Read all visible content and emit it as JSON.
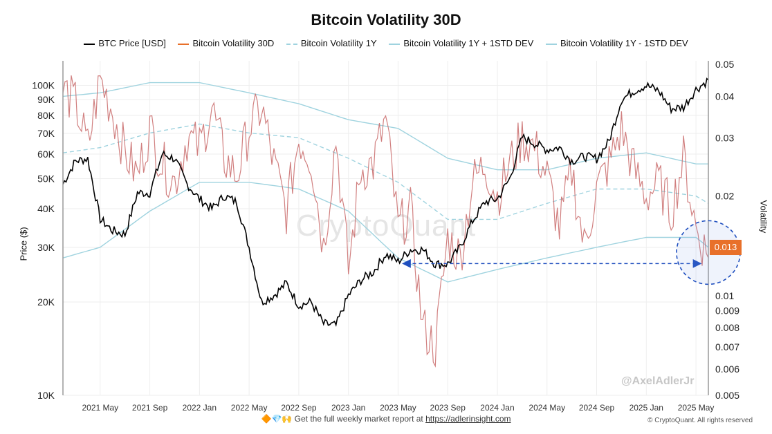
{
  "chart_data": {
    "type": "line",
    "title": "Bitcoin Volatility 30D",
    "y_left_label": "Price ($)",
    "y_right_label": "Volatility",
    "y_left_scale": "log",
    "y_right_scale": "log",
    "y_left_ticks": [
      "10K",
      "20K",
      "30K",
      "40K",
      "50K",
      "60K",
      "70K",
      "80K",
      "90K",
      "100K"
    ],
    "y_left_tick_values": [
      10000,
      20000,
      30000,
      40000,
      50000,
      60000,
      70000,
      80000,
      90000,
      100000
    ],
    "y_right_ticks": [
      "0.005",
      "0.006",
      "0.007",
      "0.008",
      "0.009",
      "0.01",
      "0.02",
      "0.03",
      "0.04",
      "0.05"
    ],
    "y_right_tick_values": [
      0.005,
      0.006,
      0.007,
      0.008,
      0.009,
      0.01,
      0.02,
      0.03,
      0.04,
      0.05
    ],
    "x_ticks": [
      "2021 May",
      "2021 Sep",
      "2022 Jan",
      "2022 May",
      "2022 Sep",
      "2023 Jan",
      "2023 May",
      "2023 Sep",
      "2024 Jan",
      "2024 May",
      "2024 Sep",
      "2025 Jan",
      "2025 May"
    ],
    "x_range_months": [
      "2021 Feb",
      "2025 Jun"
    ],
    "last_value_label": "0.013",
    "series": [
      {
        "name": "BTC Price [USD]",
        "color": "#000000",
        "axis": "left",
        "x": [
          "2021 Feb",
          "2021 Mar",
          "2021 Apr",
          "2021 May",
          "2021 Jun",
          "2021 Jul",
          "2021 Aug",
          "2021 Sep",
          "2021 Oct",
          "2021 Nov",
          "2021 Dec",
          "2022 Jan",
          "2022 Feb",
          "2022 Mar",
          "2022 Apr",
          "2022 May",
          "2022 Jun",
          "2022 Jul",
          "2022 Aug",
          "2022 Sep",
          "2022 Oct",
          "2022 Nov",
          "2022 Dec",
          "2023 Jan",
          "2023 Feb",
          "2023 Mar",
          "2023 Apr",
          "2023 May",
          "2023 Jun",
          "2023 Jul",
          "2023 Aug",
          "2023 Sep",
          "2023 Oct",
          "2023 Nov",
          "2023 Dec",
          "2024 Jan",
          "2024 Feb",
          "2024 Mar",
          "2024 Apr",
          "2024 May",
          "2024 Jun",
          "2024 Jul",
          "2024 Aug",
          "2024 Sep",
          "2024 Oct",
          "2024 Nov",
          "2024 Dec",
          "2025 Jan",
          "2025 Feb",
          "2025 Mar",
          "2025 Apr",
          "2025 May",
          "2025 Jun"
        ],
        "values": [
          48000,
          57000,
          58000,
          37000,
          34000,
          33000,
          45000,
          45000,
          60000,
          58000,
          48000,
          43000,
          40000,
          44000,
          42000,
          30000,
          20000,
          21000,
          23000,
          19500,
          20000,
          17000,
          16800,
          21000,
          23500,
          25000,
          28500,
          27000,
          29500,
          29500,
          26500,
          26500,
          30000,
          36500,
          42000,
          43000,
          50000,
          68000,
          65000,
          62000,
          63000,
          57000,
          59000,
          58000,
          66000,
          90000,
          96000,
          100000,
          96000,
          84000,
          85000,
          97000,
          104000
        ]
      },
      {
        "name": "Bitcoin Volatility 30D",
        "color": "#c96a6a",
        "axis": "right",
        "x": [
          "2021 Feb",
          "2021 Mar",
          "2021 Apr",
          "2021 May",
          "2021 Jun",
          "2021 Jul",
          "2021 Aug",
          "2021 Sep",
          "2021 Oct",
          "2021 Nov",
          "2021 Dec",
          "2022 Jan",
          "2022 Feb",
          "2022 Mar",
          "2022 Apr",
          "2022 May",
          "2022 Jun",
          "2022 Jul",
          "2022 Aug",
          "2022 Sep",
          "2022 Oct",
          "2022 Nov",
          "2022 Dec",
          "2023 Jan",
          "2023 Feb",
          "2023 Mar",
          "2023 Apr",
          "2023 May",
          "2023 Jun",
          "2023 Jul",
          "2023 Aug",
          "2023 Sep",
          "2023 Oct",
          "2023 Nov",
          "2023 Dec",
          "2024 Jan",
          "2024 Feb",
          "2024 Mar",
          "2024 Apr",
          "2024 May",
          "2024 Jun",
          "2024 Jul",
          "2024 Aug",
          "2024 Sep",
          "2024 Oct",
          "2024 Nov",
          "2024 Dec",
          "2025 Jan",
          "2025 Feb",
          "2025 Mar",
          "2025 Apr",
          "2025 May",
          "2025 Jun"
        ],
        "values": [
          0.042,
          0.038,
          0.028,
          0.045,
          0.036,
          0.027,
          0.023,
          0.032,
          0.025,
          0.022,
          0.03,
          0.028,
          0.037,
          0.026,
          0.023,
          0.032,
          0.037,
          0.025,
          0.018,
          0.03,
          0.026,
          0.014,
          0.03,
          0.012,
          0.024,
          0.025,
          0.034,
          0.016,
          0.018,
          0.008,
          0.007,
          0.015,
          0.013,
          0.022,
          0.025,
          0.02,
          0.025,
          0.03,
          0.028,
          0.023,
          0.016,
          0.024,
          0.014,
          0.021,
          0.025,
          0.032,
          0.024,
          0.02,
          0.022,
          0.018,
          0.026,
          0.016,
          0.013
        ]
      },
      {
        "name": "Bitcoin Volatility 1Y",
        "color": "#9fd3df",
        "axis": "right",
        "dashed": true,
        "x": [
          "2021 Feb",
          "2021 May",
          "2021 Sep",
          "2022 Jan",
          "2022 May",
          "2022 Sep",
          "2023 Jan",
          "2023 May",
          "2023 Sep",
          "2024 Jan",
          "2024 May",
          "2024 Sep",
          "2025 Jan",
          "2025 May",
          "2025 Jun"
        ],
        "values": [
          0.027,
          0.028,
          0.031,
          0.033,
          0.031,
          0.03,
          0.026,
          0.022,
          0.017,
          0.017,
          0.019,
          0.021,
          0.021,
          0.02,
          0.019
        ]
      },
      {
        "name": "Bitcoin Volatility 1Y + 1STD DEV",
        "color": "#9fd3df",
        "axis": "right",
        "x": [
          "2021 Feb",
          "2021 May",
          "2021 Sep",
          "2022 Jan",
          "2022 May",
          "2022 Sep",
          "2023 Jan",
          "2023 May",
          "2023 Sep",
          "2024 Jan",
          "2024 May",
          "2024 Sep",
          "2025 Jan",
          "2025 May",
          "2025 Jun"
        ],
        "values": [
          0.04,
          0.041,
          0.044,
          0.044,
          0.041,
          0.038,
          0.034,
          0.032,
          0.026,
          0.024,
          0.024,
          0.026,
          0.027,
          0.025,
          0.025
        ]
      },
      {
        "name": "Bitcoin Volatility 1Y - 1STD DEV",
        "color": "#9fd3df",
        "axis": "right",
        "x": [
          "2021 Feb",
          "2021 May",
          "2021 Sep",
          "2022 Jan",
          "2022 May",
          "2022 Sep",
          "2023 Jan",
          "2023 May",
          "2023 Sep",
          "2024 Jan",
          "2024 May",
          "2024 Sep",
          "2025 Jan",
          "2025 May",
          "2025 Jun"
        ],
        "values": [
          0.013,
          0.014,
          0.018,
          0.022,
          0.022,
          0.021,
          0.018,
          0.013,
          0.011,
          0.012,
          0.013,
          0.014,
          0.015,
          0.015,
          0.014
        ]
      }
    ]
  },
  "legend": [
    {
      "label": "BTC Price [USD]",
      "color": "#000000",
      "dashed": false
    },
    {
      "label": "Bitcoin Volatility 30D",
      "color": "#e8702a",
      "dashed": false
    },
    {
      "label": "Bitcoin Volatility 1Y",
      "color": "#9fd3df",
      "dashed": true
    },
    {
      "label": "Bitcoin Volatility 1Y + 1STD DEV",
      "color": "#9fd3df",
      "dashed": false
    },
    {
      "label": "Bitcoin Volatility 1Y - 1STD DEV",
      "color": "#9fd3df",
      "dashed": false
    }
  ],
  "watermark": "CryptoQuant",
  "author": "@AxelAdlerJr",
  "footer": {
    "emoji": "🔶💎🙌",
    "text": "Get the full weekly market report at",
    "link": "https://adlerinsight.com"
  },
  "copyright": "© CryptoQuant. All rights reserved",
  "colors": {
    "accent": "#e8702a",
    "highlight": "#1f4fbf"
  }
}
